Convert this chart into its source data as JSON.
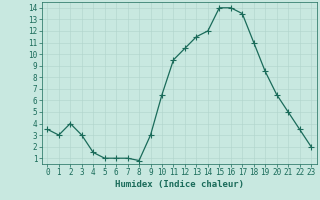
{
  "x": [
    0,
    1,
    2,
    3,
    4,
    5,
    6,
    7,
    8,
    9,
    10,
    11,
    12,
    13,
    14,
    15,
    16,
    17,
    18,
    19,
    20,
    21,
    22,
    23
  ],
  "y": [
    3.5,
    3.0,
    4.0,
    3.0,
    1.5,
    1.0,
    1.0,
    1.0,
    0.8,
    3.0,
    6.5,
    9.5,
    10.5,
    11.5,
    12.0,
    14.0,
    14.0,
    13.5,
    11.0,
    8.5,
    6.5,
    5.0,
    3.5,
    2.0
  ],
  "line_color": "#1a6b5a",
  "marker": "D",
  "marker_size": 2,
  "bg_color": "#c8e8e0",
  "grid_color": "#b0d4cc",
  "xlabel": "Humidex (Indice chaleur)",
  "xlim": [
    -0.5,
    23.5
  ],
  "ylim": [
    0.5,
    14.5
  ],
  "yticks": [
    1,
    2,
    3,
    4,
    5,
    6,
    7,
    8,
    9,
    10,
    11,
    12,
    13,
    14
  ],
  "xticks": [
    0,
    1,
    2,
    3,
    4,
    5,
    6,
    7,
    8,
    9,
    10,
    11,
    12,
    13,
    14,
    15,
    16,
    17,
    18,
    19,
    20,
    21,
    22,
    23
  ],
  "tick_label_size": 5.5,
  "xlabel_size": 6.5,
  "axis_color": "#1a6b5a",
  "spine_color": "#1a6b5a",
  "linewidth": 0.9
}
